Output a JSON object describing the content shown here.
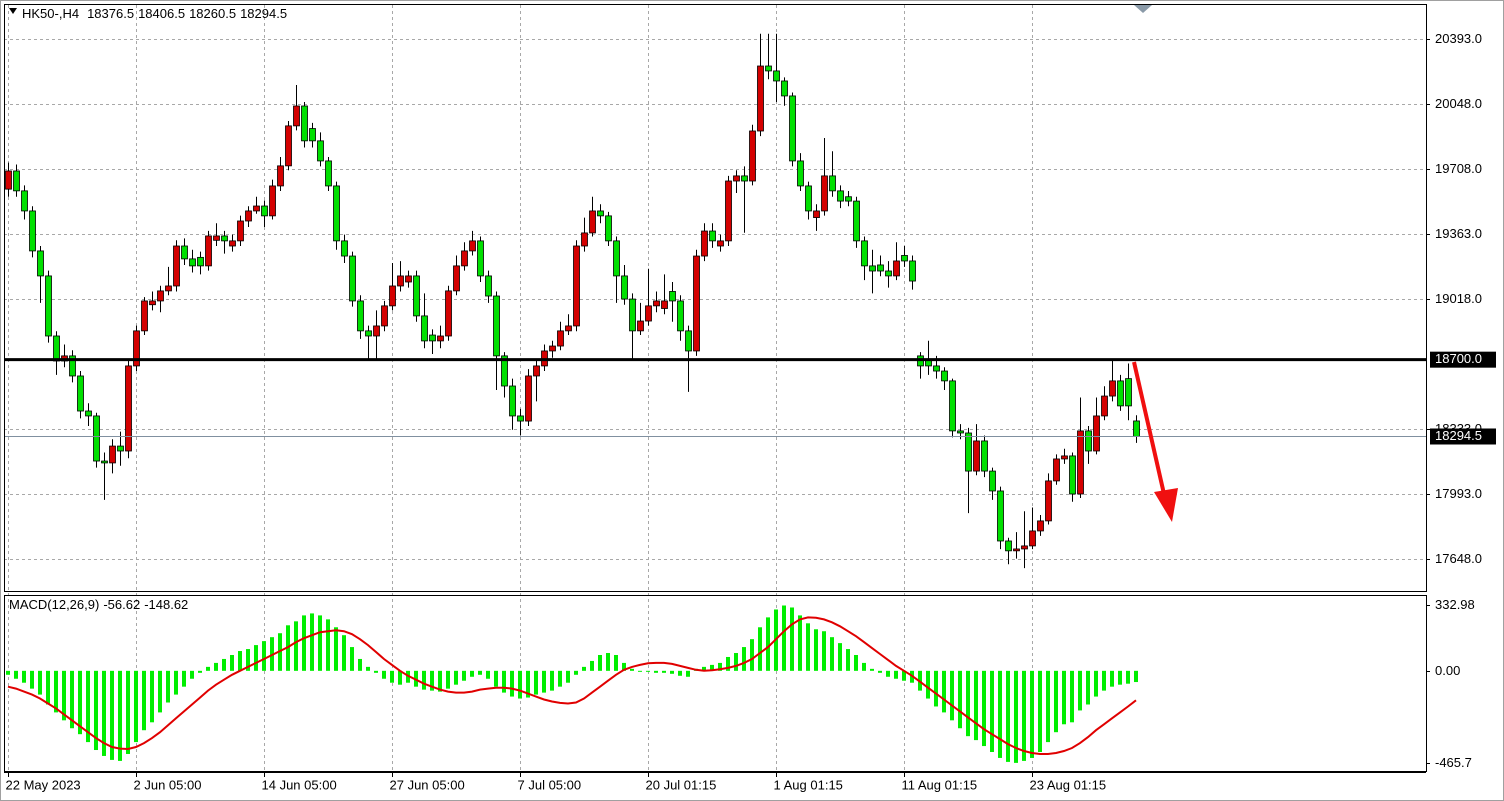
{
  "chart_data": [
    {
      "type": "candlestick",
      "title": "HK50-,H4",
      "open": [
        19600,
        19696,
        19591,
        19485,
        19274,
        19142,
        18825,
        18693,
        18720,
        18614,
        18429,
        18403,
        18165,
        18155,
        18244,
        18218,
        18667,
        18852,
        18990,
        19010,
        19063,
        19089,
        19300,
        19232,
        19240,
        19195,
        19330,
        19353,
        19300,
        19327,
        19432,
        19485,
        19511,
        19459,
        19617,
        19723,
        19934,
        20039,
        19920,
        19855,
        19749,
        19617,
        19327,
        19247,
        19010,
        18852,
        18825,
        18878,
        18984,
        19089,
        19110,
        19142,
        18931,
        18830,
        18799,
        18825,
        19063,
        19195,
        19274,
        19327,
        19142,
        19036,
        18720,
        18561,
        18403,
        18376,
        18614,
        18667,
        18746,
        18772,
        18852,
        18878,
        19300,
        19369,
        19485,
        19459,
        19327,
        19142,
        19020,
        18852,
        18904,
        18984,
        18970,
        19060,
        19010,
        18852,
        18746,
        19247,
        19379,
        19300,
        19327,
        19643,
        19670,
        19643,
        19907,
        20250,
        20224,
        20171,
        20092,
        19749,
        19617,
        19450,
        19485,
        19670,
        19591,
        19560,
        19537,
        19327,
        19195,
        19200,
        19168,
        19142,
        19250,
        19221,
        18720,
        18700,
        18667,
        18640,
        18588,
        18324,
        18313,
        18112,
        18271,
        18112,
        18007,
        17743,
        17691,
        17701,
        17717,
        17796,
        17849,
        18060,
        18176,
        18192,
        17991,
        18324,
        18218,
        18403,
        18508,
        18588,
        18600,
        18376.5
      ],
      "high": [
        19740,
        19730,
        19620,
        19510,
        19300,
        19170,
        18850,
        18780,
        18750,
        18640,
        18470,
        18420,
        18210,
        18280,
        18320,
        18700,
        18880,
        19030,
        19060,
        19090,
        19190,
        19330,
        19340,
        19280,
        19270,
        19380,
        19420,
        19380,
        19360,
        19460,
        19510,
        19560,
        19540,
        19650,
        19770,
        19960,
        20150,
        20060,
        19950,
        19900,
        19770,
        19640,
        19360,
        19270,
        19040,
        18880,
        18960,
        19010,
        19210,
        19220,
        19170,
        19170,
        19050,
        18860,
        18880,
        19090,
        19250,
        19320,
        19380,
        19350,
        19170,
        19060,
        18740,
        18600,
        18440,
        18650,
        18700,
        18780,
        18800,
        18900,
        18940,
        19330,
        19450,
        19560,
        19520,
        19480,
        19350,
        19200,
        19050,
        19000,
        19180,
        19060,
        19150,
        19110,
        19040,
        18880,
        19280,
        19420,
        19420,
        19360,
        19670,
        19700,
        19720,
        19940,
        20420,
        20420,
        20420,
        20190,
        20110,
        19790,
        19640,
        19520,
        19870,
        19800,
        19620,
        19590,
        19560,
        19350,
        19280,
        19250,
        19220,
        19320,
        19300,
        19250,
        18740,
        18800,
        18720,
        18660,
        18600,
        18360,
        18340,
        18360,
        18300,
        18130,
        18030,
        17760,
        17790,
        17900,
        17920,
        17880,
        18100,
        18200,
        18230,
        18210,
        18500,
        18350,
        18500,
        18560,
        18700,
        18620,
        18680,
        18406.5
      ],
      "low": [
        19560,
        19560,
        19440,
        19240,
        19000,
        18790,
        18620,
        18660,
        18580,
        18390,
        18350,
        18130,
        17960,
        18100,
        18140,
        18180,
        18640,
        18830,
        18960,
        18950,
        19040,
        19060,
        19200,
        19160,
        19150,
        19170,
        19300,
        19260,
        19270,
        19300,
        19400,
        19470,
        19400,
        19440,
        19590,
        19700,
        19910,
        19820,
        19820,
        19720,
        19590,
        19280,
        19210,
        18980,
        18810,
        18700,
        18700,
        18850,
        18960,
        19060,
        19080,
        18900,
        18760,
        18730,
        18760,
        18800,
        19040,
        19170,
        19250,
        19110,
        19000,
        18540,
        18500,
        18330,
        18300,
        18350,
        18480,
        18640,
        18710,
        18750,
        18830,
        18850,
        19270,
        19350,
        19420,
        19300,
        19000,
        18990,
        18700,
        18830,
        18880,
        18950,
        18940,
        18900,
        18800,
        18530,
        18720,
        19220,
        19290,
        19270,
        19300,
        19580,
        19370,
        19620,
        19880,
        20180,
        20060,
        20040,
        19720,
        19590,
        19440,
        19380,
        19460,
        19560,
        19500,
        19510,
        19290,
        19120,
        19050,
        19140,
        19080,
        19120,
        19190,
        19070,
        18600,
        18620,
        18600,
        18540,
        18290,
        18280,
        17890,
        18090,
        18080,
        17960,
        17700,
        17620,
        17650,
        17600,
        17700,
        17770,
        17830,
        18040,
        18150,
        17950,
        17970,
        18150,
        18200,
        18380,
        18480,
        18430,
        18380,
        18260.5
      ],
      "close": [
        19696,
        19591,
        19485,
        19274,
        19142,
        18825,
        18693,
        18720,
        18614,
        18429,
        18403,
        18165,
        18155,
        18244,
        18218,
        18667,
        18852,
        19010,
        19010,
        19063,
        19089,
        19300,
        19232,
        19195,
        19195,
        19353,
        19353,
        19327,
        19327,
        19432,
        19485,
        19511,
        19459,
        19617,
        19723,
        19934,
        20039,
        19855,
        19855,
        19749,
        19617,
        19327,
        19247,
        19010,
        18852,
        18825,
        18878,
        18984,
        19089,
        19142,
        19142,
        18931,
        18799,
        18799,
        18825,
        19063,
        19195,
        19274,
        19327,
        19142,
        19036,
        18720,
        18561,
        18403,
        18376,
        18614,
        18667,
        18746,
        18772,
        18852,
        18878,
        19300,
        19369,
        19485,
        19459,
        19327,
        19142,
        19020,
        18852,
        18904,
        18984,
        19010,
        19010,
        19010,
        18852,
        18746,
        19247,
        19379,
        19327,
        19327,
        19643,
        19670,
        19643,
        19907,
        20250,
        20224,
        20171,
        20092,
        19749,
        19617,
        19485,
        19485,
        19670,
        19591,
        19537,
        19537,
        19327,
        19195,
        19168,
        19168,
        19142,
        19221,
        19221,
        19115,
        18667,
        18667,
        18640,
        18588,
        18324,
        18313,
        18112,
        18271,
        18112,
        18007,
        17743,
        17691,
        17701,
        17717,
        17796,
        17849,
        18060,
        18176,
        18192,
        17991,
        18324,
        18218,
        18403,
        18508,
        18588,
        18456,
        18456,
        18294.5
      ],
      "up_color": "#d40000",
      "down_color": "#00e000",
      "ylim": [
        17479,
        20572
      ],
      "yticks": [
        {
          "value": 20393,
          "label": "20393.0"
        },
        {
          "value": 20048,
          "label": "20048.0"
        },
        {
          "value": 19708,
          "label": "19708.0"
        },
        {
          "value": 19363,
          "label": "19363.0"
        },
        {
          "value": 19018,
          "label": "19018.0"
        },
        {
          "value": 18333,
          "label": "18333.0"
        },
        {
          "value": 17993,
          "label": "17993.0"
        },
        {
          "value": 17648,
          "label": "17648.0"
        }
      ],
      "xticks": [
        {
          "value": 0,
          "label": "22 May 2023"
        },
        {
          "value": 16,
          "label": "2 Jun 05:00"
        },
        {
          "value": 32,
          "label": "14 Jun 05:00"
        },
        {
          "value": 48,
          "label": "27 Jun 05:00"
        },
        {
          "value": 64,
          "label": "7 Jul 05:00"
        },
        {
          "value": 80,
          "label": "20 Jul 01:15"
        },
        {
          "value": 96,
          "label": "1 Aug 01:15"
        },
        {
          "value": 112,
          "label": "11 Aug 01:15"
        },
        {
          "value": 128,
          "label": "23 Aug 01:15"
        }
      ],
      "hlines": [
        {
          "value": 18700,
          "label": "18700.0",
          "color": "#000000"
        }
      ],
      "grid": true
    },
    {
      "type": "macd",
      "title": "MACD(12,26,9)",
      "values": [
        -20,
        -40,
        -60,
        -90,
        -120,
        -170,
        -210,
        -250,
        -290,
        -320,
        -360,
        -400,
        -430,
        -450,
        -455,
        -420,
        -360,
        -300,
        -260,
        -210,
        -160,
        -120,
        -80,
        -40,
        -10,
        20,
        40,
        60,
        80,
        100,
        110,
        130,
        150,
        170,
        190,
        230,
        250,
        280,
        290,
        280,
        260,
        220,
        180,
        120,
        60,
        20,
        -10,
        -40,
        -60,
        -70,
        -60,
        -80,
        -95,
        -100,
        -105,
        -90,
        -70,
        -50,
        -30,
        -20,
        -40,
        -80,
        -110,
        -130,
        -140,
        -135,
        -120,
        -110,
        -100,
        -80,
        -60,
        -20,
        20,
        50,
        80,
        90,
        80,
        40,
        10,
        -5,
        -5,
        -10,
        -10,
        -15,
        -25,
        -30,
        10,
        20,
        30,
        40,
        70,
        90,
        120,
        160,
        220,
        270,
        310,
        330,
        320,
        280,
        240,
        210,
        200,
        170,
        140,
        110,
        80,
        40,
        10,
        -10,
        -30,
        -40,
        -50,
        -60,
        -100,
        -140,
        -180,
        -210,
        -250,
        -290,
        -330,
        -350,
        -380,
        -410,
        -440,
        -460,
        -465,
        -455,
        -440,
        -410,
        -360,
        -310,
        -270,
        -260,
        -200,
        -170,
        -130,
        -100,
        -80,
        -70,
        -65,
        -56.62
      ],
      "color": "#00ee00",
      "signal": [
        -80,
        -90,
        -105,
        -120,
        -140,
        -165,
        -190,
        -220,
        -250,
        -280,
        -310,
        -340,
        -365,
        -385,
        -393,
        -395,
        -385,
        -365,
        -340,
        -310,
        -275,
        -240,
        -205,
        -170,
        -135,
        -100,
        -70,
        -45,
        -20,
        0,
        20,
        40,
        60,
        80,
        100,
        120,
        145,
        165,
        180,
        195,
        200,
        205,
        200,
        185,
        160,
        130,
        95,
        60,
        30,
        0,
        -25,
        -45,
        -65,
        -80,
        -95,
        -105,
        -110,
        -110,
        -105,
        -95,
        -90,
        -85,
        -85,
        -90,
        -100,
        -115,
        -130,
        -145,
        -155,
        -162,
        -165,
        -160,
        -140,
        -110,
        -80,
        -50,
        -20,
        5,
        20,
        30,
        38,
        40,
        40,
        35,
        25,
        15,
        5,
        0,
        3,
        8,
        15,
        25,
        40,
        60,
        90,
        120,
        160,
        200,
        235,
        260,
        270,
        268,
        260,
        245,
        225,
        200,
        175,
        145,
        115,
        85,
        55,
        25,
        0,
        -25,
        -55,
        -85,
        -115,
        -145,
        -175,
        -205,
        -235,
        -265,
        -295,
        -320,
        -345,
        -370,
        -390,
        -405,
        -415,
        -420,
        -420,
        -415,
        -405,
        -390,
        -365,
        -335,
        -300,
        -270,
        -240,
        -210,
        -180,
        -148.62
      ],
      "signal_color": "#e00000",
      "ylim": [
        -506,
        378
      ],
      "yticks": [
        332.98,
        {
          "value": 0,
          "label": "0.00"
        },
        -465.7
      ],
      "grid": true
    }
  ]
}
